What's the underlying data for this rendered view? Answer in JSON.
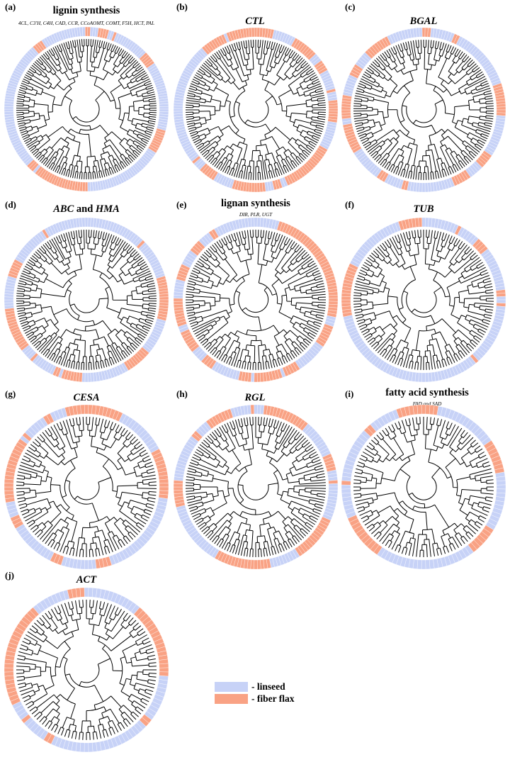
{
  "colors": {
    "linseed": "#c7d2f7",
    "fiber_flax": "#f9a284",
    "branch": "#000000"
  },
  "panels": [
    {
      "label": "(a)",
      "title": "lignin synthesis",
      "title_italic": false,
      "subtitle": "4CL, C3'H, C4H, CAD, CCR, CCoAOMT, COMT, F5H, HCT, PAL",
      "seed": 11,
      "leaves": 190,
      "fiber_frac": 0.4
    },
    {
      "label": "(b)",
      "title": "CTL",
      "title_italic": true,
      "subtitle": "",
      "seed": 23,
      "leaves": 180,
      "fiber_frac": 0.42
    },
    {
      "label": "(c)",
      "title": "BGAL",
      "title_italic": true,
      "subtitle": "",
      "seed": 37,
      "leaves": 170,
      "fiber_frac": 0.4
    },
    {
      "label": "(d)",
      "title_parts": [
        {
          "text": "ABC",
          "italic": true
        },
        {
          "text": " and ",
          "italic": false
        },
        {
          "text": "HMA",
          "italic": true
        }
      ],
      "subtitle": "",
      "seed": 41,
      "leaves": 170,
      "fiber_frac": 0.36
    },
    {
      "label": "(e)",
      "title": "lignan synthesis",
      "title_italic": false,
      "subtitle": "DIR, PLR, UGT",
      "seed": 53,
      "leaves": 160,
      "fiber_frac": 0.38
    },
    {
      "label": "(f)",
      "title": "TUB",
      "title_italic": true,
      "subtitle": "",
      "seed": 67,
      "leaves": 150,
      "fiber_frac": 0.4
    },
    {
      "label": "(g)",
      "title": "CESA",
      "title_italic": true,
      "subtitle": "",
      "seed": 71,
      "leaves": 130,
      "fiber_frac": 0.42
    },
    {
      "label": "(h)",
      "title": "RGL",
      "title_italic": true,
      "subtitle": "",
      "seed": 83,
      "leaves": 150,
      "fiber_frac": 0.42
    },
    {
      "label": "(i)",
      "title": "fatty acid synthesis",
      "title_italic": false,
      "subtitle": "FAD and SAD",
      "seed": 97,
      "leaves": 120,
      "fiber_frac": 0.42
    },
    {
      "label": "(j)",
      "title": "ACT",
      "title_italic": true,
      "subtitle": "",
      "seed": 101,
      "leaves": 120,
      "fiber_frac": 0.44
    }
  ],
  "legend": [
    {
      "key": "linseed",
      "label": "- linseed"
    },
    {
      "key": "fiber_flax",
      "label": "- fiber flax"
    }
  ]
}
